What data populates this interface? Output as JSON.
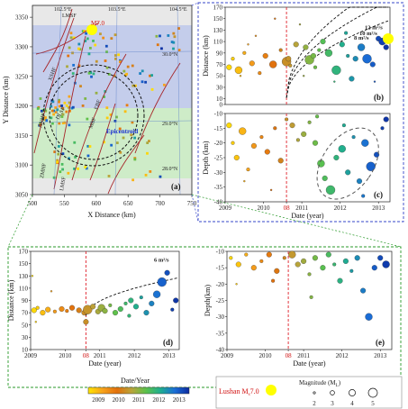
{
  "map": {
    "label": "(a)",
    "xlabel": "X Distance (km)",
    "ylabel": "Y Distance (km)",
    "xlim": [
      500,
      750
    ],
    "ylim": [
      3050,
      3370
    ],
    "xticks": [
      "500",
      "550",
      "600",
      "650",
      "700",
      "750"
    ],
    "yticks": [
      "3050",
      "3100",
      "3150",
      "3200",
      "3250",
      "3300",
      "3350"
    ],
    "lon_labels": [
      "102.5°E",
      "103.5°E",
      "104.5°E"
    ],
    "lat_labels": [
      "30.0°N",
      "29.0°N",
      "28.0°N"
    ],
    "fault_labels": [
      "LMSF",
      "XSHF",
      "ANHF",
      "DLSF",
      "EBF",
      "MBF",
      "ZMHF",
      "LMSF"
    ],
    "epicentroid_label": "Epicentroid",
    "mainshock_label": "M7.0",
    "mainshock_color": "#ffff00",
    "band_colors": [
      "#b8c4ec",
      "#c9ecc2"
    ]
  },
  "colorbar": {
    "title": "Date/Year",
    "ticks": [
      "2009",
      "2010",
      "2011",
      "2012",
      "2013"
    ],
    "colors": [
      "#ffe400",
      "#f7a21c",
      "#e2700b",
      "#b9a43a",
      "#5dc14b",
      "#1fae8f",
      "#1a6ed6",
      "#0c2a9e"
    ]
  },
  "legend": {
    "mainshock": "Lushan M",
    "mainshock_sub": "s",
    "mainshock_mag": "7.0",
    "magnitude_title": "Magnitude (M",
    "magnitude_sub": "L",
    "magnitude_close": ")",
    "sizes": [
      "2",
      "3",
      "4",
      "5"
    ]
  },
  "chart_data": [
    {
      "type": "scatter",
      "panel": "(b)",
      "xlabel": "",
      "ylabel": "Distance (km)",
      "xlim": [
        2009,
        2013.3
      ],
      "ylim": [
        0,
        170
      ],
      "yticks": [
        "0",
        "10",
        "30",
        "50",
        "70",
        "90",
        "110",
        "130",
        "150",
        "170"
      ],
      "marker_line": {
        "x": 2010.6,
        "label": "08"
      },
      "diffusion_curves": [
        {
          "label": "12 m²/s",
          "D": 12
        },
        {
          "label": "10 m²/s",
          "D": 10
        },
        {
          "label": "8 m²/s",
          "D": 8
        }
      ],
      "points": [
        [
          2009.1,
          65,
          3
        ],
        [
          2009.2,
          80,
          2.5
        ],
        [
          2009.35,
          60,
          3.5
        ],
        [
          2009.5,
          90,
          2.5
        ],
        [
          2009.7,
          72,
          3
        ],
        [
          2009.9,
          55,
          2.5
        ],
        [
          2010.05,
          85,
          3
        ],
        [
          2010.25,
          70,
          3.5
        ],
        [
          2010.45,
          95,
          2.5
        ],
        [
          2010.6,
          75,
          4
        ],
        [
          2010.65,
          80,
          3
        ],
        [
          2010.7,
          68,
          2.5
        ],
        [
          2010.85,
          105,
          3
        ],
        [
          2010.95,
          140,
          2
        ],
        [
          2011.1,
          100,
          3
        ],
        [
          2011.2,
          78,
          4
        ],
        [
          2011.3,
          85,
          3
        ],
        [
          2011.45,
          95,
          2.5
        ],
        [
          2011.55,
          110,
          3
        ],
        [
          2011.7,
          90,
          3.5
        ],
        [
          2011.9,
          60,
          4
        ],
        [
          2012.05,
          105,
          3
        ],
        [
          2012.2,
          85,
          2.5
        ],
        [
          2012.4,
          80,
          3
        ],
        [
          2012.55,
          100,
          3.5
        ],
        [
          2012.7,
          80,
          4
        ],
        [
          2012.85,
          70,
          3
        ],
        [
          2013.0,
          115,
          3
        ],
        [
          2013.1,
          110,
          3.5
        ],
        [
          2013.2,
          100,
          3
        ],
        [
          2009.4,
          50,
          2
        ],
        [
          2009.8,
          120,
          2
        ],
        [
          2010.3,
          150,
          2
        ],
        [
          2011.05,
          50,
          2
        ],
        [
          2011.85,
          40,
          2
        ],
        [
          2012.3,
          45,
          3
        ],
        [
          2012.9,
          40,
          2
        ],
        [
          2012.15,
          125,
          2.5
        ],
        [
          2011.35,
          65,
          2.5
        ],
        [
          2009.6,
          105,
          2
        ]
      ]
    },
    {
      "type": "scatter",
      "panel": "(c)",
      "xlabel": "Date (year)",
      "ylabel": "Depth (km)",
      "xlim": [
        2009,
        2013.3
      ],
      "ylim": [
        -40,
        -10
      ],
      "xticks": [
        "2009",
        "2010",
        "08",
        "2011",
        "2012",
        "2013"
      ],
      "yticks": [
        "-10",
        "-15",
        "-20",
        "-25",
        "-30",
        "-35",
        "-40"
      ],
      "marker_line": {
        "x": 2010.6,
        "label": "08"
      },
      "points": [
        [
          2009.1,
          -14,
          3
        ],
        [
          2009.2,
          -20,
          2.5
        ],
        [
          2009.3,
          -25,
          3
        ],
        [
          2009.45,
          -16,
          3.5
        ],
        [
          2009.6,
          -29,
          2.5
        ],
        [
          2009.75,
          -21,
          3
        ],
        [
          2009.95,
          -18,
          2.5
        ],
        [
          2010.1,
          -23,
          3
        ],
        [
          2010.3,
          -15,
          2.5
        ],
        [
          2010.45,
          -26,
          3
        ],
        [
          2010.6,
          -12,
          2.5
        ],
        [
          2010.75,
          -14,
          3
        ],
        [
          2010.9,
          -19,
          2.5
        ],
        [
          2011.05,
          -17,
          3
        ],
        [
          2011.2,
          -13,
          2.5
        ],
        [
          2011.35,
          -20,
          3
        ],
        [
          2011.5,
          -27,
          3.5
        ],
        [
          2011.6,
          -32,
          3
        ],
        [
          2011.75,
          -36,
          4
        ],
        [
          2011.9,
          -25,
          3
        ],
        [
          2012.05,
          -22,
          3.5
        ],
        [
          2012.2,
          -30,
          3
        ],
        [
          2012.35,
          -18,
          2.5
        ],
        [
          2012.5,
          -33,
          3
        ],
        [
          2012.65,
          -20,
          3.5
        ],
        [
          2012.8,
          -28,
          4
        ],
        [
          2012.95,
          -24,
          3
        ],
        [
          2013.1,
          -15,
          2.5
        ],
        [
          2013.2,
          -12,
          3
        ],
        [
          2011.4,
          -11,
          2.5
        ],
        [
          2012.1,
          -14,
          2.5
        ],
        [
          2009.5,
          -33,
          2
        ],
        [
          2010.2,
          -36,
          2
        ],
        [
          2012.6,
          -38,
          2.5
        ]
      ]
    },
    {
      "type": "scatter",
      "panel": "(d)",
      "xlabel": "Date (year)",
      "ylabel": "Distance (km)",
      "xlim": [
        2009,
        2013.3
      ],
      "ylim": [
        10,
        170
      ],
      "xticks": [
        "2009",
        "2010",
        "08",
        "2011",
        "2012",
        "2013"
      ],
      "yticks": [
        "10",
        "30",
        "50",
        "70",
        "90",
        "110",
        "130",
        "150",
        "170"
      ],
      "marker_line": {
        "x": 2010.6,
        "label": "08"
      },
      "diffusion_curves": [
        {
          "label": "6 m²/s",
          "D": 6
        }
      ],
      "points": [
        [
          2009.1,
          74,
          3
        ],
        [
          2009.2,
          78,
          2.5
        ],
        [
          2009.35,
          70,
          3
        ],
        [
          2009.5,
          75,
          3
        ],
        [
          2009.7,
          72,
          2.5
        ],
        [
          2009.9,
          76,
          3
        ],
        [
          2010.05,
          73,
          2.5
        ],
        [
          2010.2,
          78,
          3
        ],
        [
          2010.4,
          74,
          3
        ],
        [
          2010.55,
          70,
          3
        ],
        [
          2010.65,
          75,
          4
        ],
        [
          2010.8,
          80,
          3
        ],
        [
          2010.95,
          72,
          3
        ],
        [
          2011.05,
          78,
          3.5
        ],
        [
          2011.15,
          73,
          3
        ],
        [
          2011.3,
          82,
          2.5
        ],
        [
          2011.45,
          70,
          3
        ],
        [
          2011.6,
          76,
          3
        ],
        [
          2011.75,
          85,
          2.5
        ],
        [
          2011.9,
          90,
          3
        ],
        [
          2012.05,
          80,
          3
        ],
        [
          2012.2,
          95,
          2.5
        ],
        [
          2012.35,
          70,
          3
        ],
        [
          2012.5,
          85,
          3
        ],
        [
          2012.65,
          100,
          3.5
        ],
        [
          2012.8,
          120,
          4
        ],
        [
          2012.95,
          135,
          3
        ],
        [
          2013.1,
          75,
          2.5
        ],
        [
          2013.2,
          90,
          3
        ],
        [
          2009.05,
          130,
          2
        ],
        [
          2009.6,
          105,
          2
        ],
        [
          2009.15,
          55,
          2
        ],
        [
          2010.6,
          55,
          3
        ],
        [
          2011.85,
          65,
          2.5
        ]
      ]
    },
    {
      "type": "scatter",
      "panel": "(e)",
      "xlabel": "Date (year)",
      "ylabel": "Depth(km)",
      "xlim": [
        2009,
        2013.3
      ],
      "ylim": [
        -40,
        -10
      ],
      "xticks": [
        "2009",
        "2010",
        "08",
        "2011",
        "2012",
        "2013"
      ],
      "yticks": [
        "-10",
        "-15",
        "-20",
        "-25",
        "-30",
        "-35",
        "-40"
      ],
      "marker_line": {
        "x": 2010.6,
        "label": "08"
      },
      "points": [
        [
          2009.1,
          -12,
          2.5
        ],
        [
          2009.3,
          -14,
          3
        ],
        [
          2009.5,
          -11,
          2.5
        ],
        [
          2009.7,
          -15,
          3
        ],
        [
          2009.9,
          -13,
          2.5
        ],
        [
          2010.1,
          -11,
          3
        ],
        [
          2010.3,
          -16,
          3
        ],
        [
          2010.5,
          -12,
          2.5
        ],
        [
          2010.7,
          -11,
          3.5
        ],
        [
          2010.85,
          -14,
          3
        ],
        [
          2011.0,
          -13,
          3
        ],
        [
          2011.15,
          -17,
          2.5
        ],
        [
          2011.3,
          -12,
          3
        ],
        [
          2011.5,
          -15,
          3
        ],
        [
          2011.65,
          -11,
          3
        ],
        [
          2011.8,
          -14,
          2.5
        ],
        [
          2011.95,
          -19,
          3
        ],
        [
          2012.1,
          -13,
          3
        ],
        [
          2012.25,
          -16,
          2.5
        ],
        [
          2012.4,
          -12,
          3
        ],
        [
          2012.55,
          -22,
          3
        ],
        [
          2012.7,
          -30,
          3.5
        ],
        [
          2012.85,
          -15,
          3
        ],
        [
          2013.0,
          -12,
          3
        ],
        [
          2013.15,
          -14,
          3.5
        ],
        [
          2011.2,
          -24,
          2.5
        ],
        [
          2009.25,
          -20,
          2
        ],
        [
          2010.2,
          -19,
          2.5
        ]
      ]
    }
  ]
}
